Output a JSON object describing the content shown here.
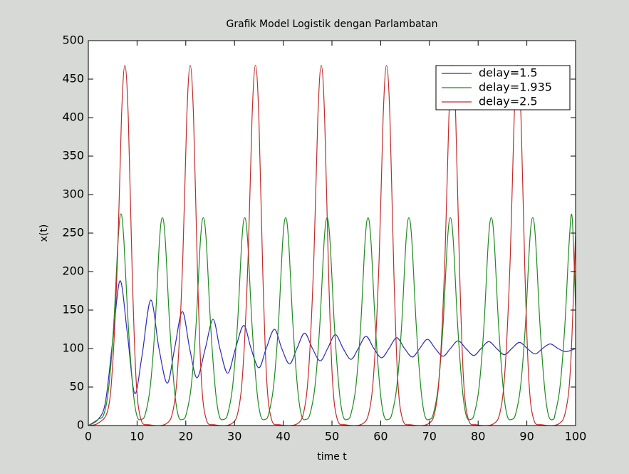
{
  "chart_data": {
    "type": "line",
    "title": "Grafik Model Logistik dengan Parlambatan",
    "x_label": "time t",
    "y_label": "x(t)",
    "xlim": [
      0,
      100
    ],
    "ylim": [
      0,
      500
    ],
    "xticks": [
      0,
      10,
      20,
      30,
      40,
      50,
      60,
      70,
      80,
      90,
      100
    ],
    "yticks": [
      0,
      50,
      100,
      150,
      200,
      250,
      300,
      350,
      400,
      450,
      500
    ],
    "grid": false,
    "legend": "upper right",
    "series": [
      {
        "name": "delay=1.5",
        "color": "#2b2bb8",
        "x": [
          0,
          2,
          3.5,
          5,
          6.5,
          8,
          9.5,
          11,
          12.8,
          14.5,
          16.2,
          17.7,
          19.3,
          20.8,
          22.3,
          24,
          25.6,
          27,
          28.6,
          30.2,
          31.9,
          33.4,
          35,
          36.5,
          38.2,
          39.7,
          41.3,
          42.8,
          44.4,
          46,
          47.6,
          49.1,
          50.7,
          52.3,
          53.9,
          55.4,
          57,
          58.6,
          60.2,
          61.7,
          63.3,
          64.9,
          66.5,
          68,
          69.6,
          71.2,
          72.8,
          74.3,
          75.9,
          77.5,
          79.1,
          80.6,
          82.2,
          83.8,
          85.4,
          86.9,
          88.5,
          90.1,
          91.7,
          93.2,
          94.8,
          96.4,
          98,
          100
        ],
        "values": [
          0,
          8,
          30,
          110,
          188,
          120,
          42,
          90,
          163,
          100,
          55,
          100,
          148,
          100,
          62,
          100,
          138,
          100,
          68,
          100,
          130,
          100,
          75,
          100,
          125,
          100,
          80,
          100,
          120,
          100,
          84,
          100,
          118,
          100,
          86,
          100,
          116,
          100,
          88,
          100,
          114,
          100,
          89,
          100,
          112,
          100,
          90,
          100,
          110,
          100,
          91,
          100,
          109,
          100,
          92,
          100,
          108,
          100,
          93,
          100,
          106,
          100,
          96,
          100
        ]
      },
      {
        "name": "delay=1.935",
        "color": "#1f8a1f",
        "x": [
          0,
          2,
          3.2,
          4.2,
          5.2,
          6.1,
          6.7,
          7.3,
          8.2,
          9.2,
          10,
          10.9,
          11.7,
          12.7,
          13.7,
          14.6,
          15.2,
          15.8,
          16.7,
          17.7,
          18.5,
          19.4,
          20.1,
          21.1,
          22.1,
          23,
          23.6,
          24.2,
          25.1,
          26.1,
          26.9,
          27.8,
          28.6,
          29.6,
          30.6,
          31.5,
          32.1,
          32.7,
          33.6,
          34.6,
          35.4,
          36.3,
          37,
          38,
          39,
          39.9,
          40.5,
          41.1,
          42,
          43,
          43.8,
          44.7,
          45.5,
          46.5,
          47.5,
          48.4,
          49,
          49.6,
          50.5,
          51.5,
          52.3,
          53.2,
          53.9,
          54.9,
          55.9,
          56.8,
          57.4,
          58,
          58.9,
          59.9,
          60.7,
          61.6,
          62.3,
          63.3,
          64.3,
          65.2,
          65.8,
          66.4,
          67.3,
          68.3,
          69.1,
          70,
          70.8,
          71.8,
          72.8,
          73.7,
          74.3,
          74.9,
          75.8,
          76.8,
          77.6,
          78.5,
          79.2,
          80.2,
          81.2,
          82.1,
          82.7,
          83.3,
          84.2,
          85.2,
          86,
          86.9,
          87.7,
          88.7,
          89.7,
          90.6,
          91.2,
          91.8,
          92.7,
          93.7,
          94.5,
          95.4,
          95.8,
          96.8,
          97.8,
          98.7,
          99.3,
          100
        ],
        "values": [
          0,
          8,
          15,
          50,
          130,
          240,
          275,
          240,
          130,
          45,
          12,
          8,
          15,
          50,
          130,
          240,
          270,
          240,
          130,
          45,
          12,
          8,
          15,
          50,
          130,
          240,
          270,
          240,
          130,
          45,
          12,
          8,
          15,
          50,
          130,
          240,
          270,
          240,
          130,
          45,
          12,
          8,
          15,
          50,
          130,
          240,
          270,
          240,
          130,
          45,
          12,
          8,
          15,
          50,
          130,
          240,
          270,
          240,
          130,
          45,
          12,
          8,
          15,
          50,
          130,
          240,
          270,
          240,
          130,
          45,
          12,
          8,
          15,
          50,
          130,
          240,
          270,
          240,
          130,
          45,
          12,
          8,
          15,
          50,
          130,
          240,
          270,
          240,
          130,
          45,
          12,
          8,
          15,
          50,
          130,
          240,
          270,
          240,
          130,
          45,
          12,
          8,
          15,
          50,
          130,
          240,
          270,
          240,
          130,
          45,
          12,
          8,
          15,
          50,
          130,
          240,
          270,
          155
        ]
      },
      {
        "name": "delay=2.5",
        "color": "#c22a2a",
        "x": [
          0,
          2,
          4,
          5,
          6,
          6.8,
          7.5,
          8.2,
          9,
          9.8,
          10.8,
          12.5,
          15.9,
          17.4,
          18.4,
          19.4,
          20.2,
          20.9,
          21.6,
          22.4,
          23.2,
          24.2,
          25.9,
          29.3,
          30.8,
          31.8,
          32.8,
          33.6,
          34.3,
          35,
          35.8,
          36.6,
          37.6,
          39.3,
          42.8,
          44.3,
          45.3,
          46.3,
          47.1,
          47.8,
          48.5,
          49.3,
          50.1,
          51.1,
          52.8,
          56.2,
          57.7,
          58.7,
          59.7,
          60.5,
          61.2,
          61.9,
          62.7,
          63.5,
          64.5,
          66.2,
          69.7,
          71.2,
          72.2,
          73.2,
          74,
          74.7,
          75.4,
          76.2,
          77,
          78,
          79.7,
          83.1,
          84.6,
          85.6,
          86.6,
          87.4,
          88.1,
          88.8,
          89.6,
          90.4,
          91.4,
          93.1,
          96.5,
          98,
          99,
          100
        ],
        "values": [
          0,
          3,
          20,
          80,
          220,
          400,
          468,
          400,
          200,
          60,
          8,
          1,
          2,
          20,
          80,
          220,
          400,
          468,
          400,
          200,
          60,
          8,
          1,
          2,
          20,
          80,
          220,
          400,
          468,
          400,
          200,
          60,
          8,
          1,
          2,
          20,
          80,
          220,
          400,
          468,
          400,
          200,
          60,
          8,
          1,
          2,
          20,
          80,
          220,
          400,
          468,
          400,
          200,
          60,
          8,
          1,
          2,
          20,
          80,
          220,
          400,
          468,
          400,
          200,
          60,
          8,
          1,
          2,
          20,
          80,
          220,
          400,
          468,
          400,
          200,
          60,
          8,
          1,
          2,
          20,
          80,
          250
        ]
      }
    ]
  }
}
